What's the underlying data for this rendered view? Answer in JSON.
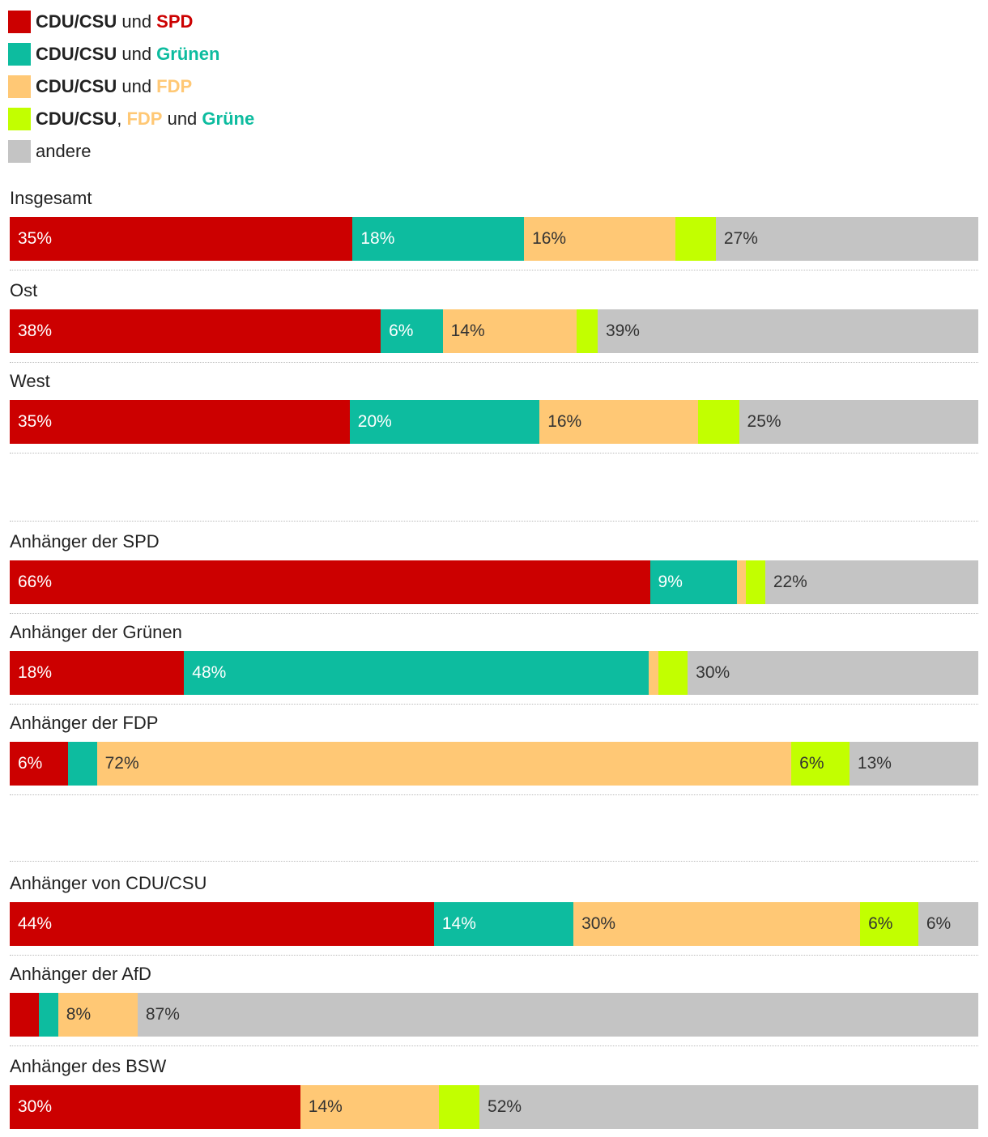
{
  "chart_data": {
    "type": "stacked-bar",
    "orientation": "horizontal",
    "unit": "%",
    "legend": [
      {
        "key": "spd",
        "parts": [
          {
            "text": "CDU/CSU",
            "color": "#222222",
            "bold": true
          },
          {
            "text": " und ",
            "color": "#222222",
            "bold": false
          },
          {
            "text": "SPD",
            "color": "#cc0000",
            "bold": true
          }
        ],
        "color": "#cc0000"
      },
      {
        "key": "gruene",
        "parts": [
          {
            "text": "CDU/CSU",
            "color": "#222222",
            "bold": true
          },
          {
            "text": " und ",
            "color": "#222222",
            "bold": false
          },
          {
            "text": "Grünen",
            "color": "#0dbc9f",
            "bold": true
          }
        ],
        "color": "#0dbc9f"
      },
      {
        "key": "fdp",
        "parts": [
          {
            "text": "CDU/CSU",
            "color": "#222222",
            "bold": true
          },
          {
            "text": " und ",
            "color": "#222222",
            "bold": false
          },
          {
            "text": "FDP",
            "color": "#ffc875",
            "bold": true
          }
        ],
        "color": "#ffc875"
      },
      {
        "key": "jamaika",
        "parts": [
          {
            "text": "CDU/CSU",
            "color": "#222222",
            "bold": true
          },
          {
            "text": ", ",
            "color": "#222222",
            "bold": false
          },
          {
            "text": "FDP",
            "color": "#ffc875",
            "bold": true
          },
          {
            "text": " und ",
            "color": "#222222",
            "bold": false
          },
          {
            "text": "Grüne",
            "color": "#0dbc9f",
            "bold": true
          }
        ],
        "color": "#c2ff00"
      },
      {
        "key": "andere",
        "parts": [
          {
            "text": "andere",
            "color": "#222222",
            "bold": false
          }
        ],
        "color": "#c4c4c4"
      }
    ],
    "label_colors": {
      "spd": "#ffffff",
      "gruene": "#ffffff",
      "fdp": "#333333",
      "jamaika": "#333333",
      "andere": "#333333"
    },
    "rows": [
      {
        "label": "Insgesamt",
        "values": [
          35.4,
          17.7,
          15.6,
          4.2,
          27.1
        ],
        "labels": [
          "35%",
          "18%",
          "16%",
          "",
          "27%"
        ]
      },
      {
        "label": "Ost",
        "values": [
          38.3,
          6.4,
          13.8,
          2.2,
          39.3
        ],
        "labels": [
          "38%",
          "6%",
          "14%",
          "",
          "39%"
        ]
      },
      {
        "label": "West",
        "values": [
          35.1,
          19.6,
          16.4,
          4.2,
          24.7
        ],
        "labels": [
          "35%",
          "20%",
          "16%",
          "",
          "25%"
        ]
      },
      {
        "label": "Anhänger der SPD",
        "values": [
          66.1,
          9.0,
          0.9,
          2.0,
          22.0
        ],
        "labels": [
          "66%",
          "9%",
          "",
          "",
          "22%"
        ]
      },
      {
        "label": "Anhänger der Grünen",
        "values": [
          18.0,
          48.0,
          1.0,
          3.0,
          30.0
        ],
        "labels": [
          "18%",
          "48%",
          "",
          "",
          "30%"
        ]
      },
      {
        "label": "Anhänger der FDP",
        "values": [
          6.0,
          3.0,
          71.7,
          6.0,
          13.3
        ],
        "labels": [
          "6%",
          "",
          "72%",
          "6%",
          "13%"
        ]
      },
      {
        "label": "Anhänger von CDU/CSU",
        "values": [
          43.8,
          14.4,
          29.6,
          6.0,
          6.2
        ],
        "labels": [
          "44%",
          "14%",
          "30%",
          "6%",
          "6%"
        ]
      },
      {
        "label": "Anhänger der AfD",
        "values": [
          3.0,
          2.0,
          8.2,
          0,
          86.8
        ],
        "labels": [
          "",
          "",
          "8%",
          "",
          "87%"
        ]
      },
      {
        "label": "Anhänger des BSW",
        "values": [
          30.0,
          0,
          14.3,
          4.2,
          51.5
        ],
        "labels": [
          "30%",
          "",
          "14%",
          "",
          "52%"
        ]
      }
    ]
  }
}
